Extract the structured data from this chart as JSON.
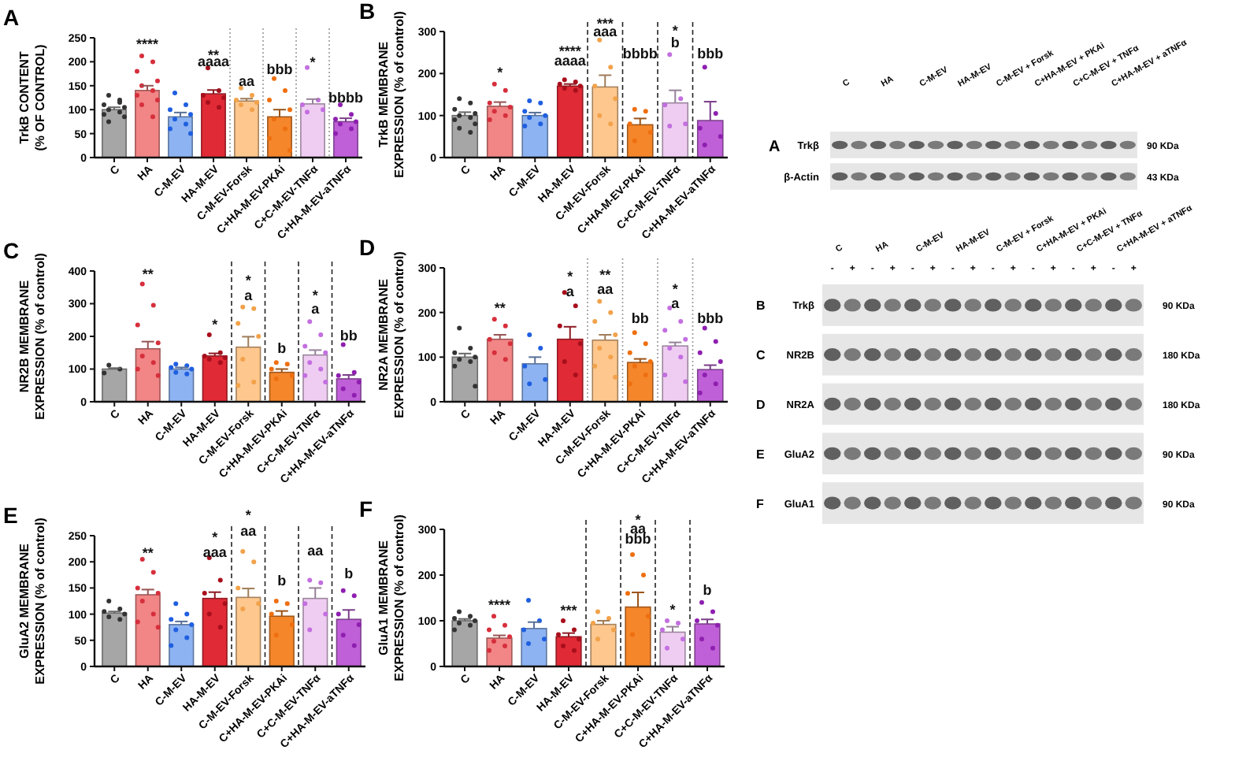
{
  "chart_data": [
    {
      "type": "bar",
      "title": "A",
      "ylabel": "TrkB CONTENT\n(% OF CONTROL)",
      "categories": [
        "C",
        "HA",
        "C-M-EV",
        "HA-M-EV",
        "C-M-EV-Forsk",
        "C+HA-M-EV-PKAi",
        "C+C-M-EV-TNFα",
        "C+HA-M-EV-aTNFα"
      ],
      "ylim": [
        0,
        250
      ],
      "yticks": [
        0,
        50,
        100,
        150,
        200,
        250
      ],
      "series": [
        {
          "type": "bar",
          "values": [
            100,
            140,
            85,
            133,
            118,
            85,
            112,
            75
          ],
          "errors": [
            [
              100,
              105
            ],
            [
              140,
              150
            ],
            [
              85,
              94
            ],
            [
              133,
              141
            ],
            [
              118,
              123
            ],
            [
              85,
              100
            ],
            [
              112,
              122
            ],
            [
              75,
              82
            ]
          ],
          "colors": [
            "#a6a6a6",
            "#f28585",
            "#8db3f2",
            "#e02a36",
            "#fdc78e",
            "#f5862a",
            "#efcdf2",
            "#c060d8"
          ]
        },
        {
          "type": "scatter",
          "color": "#333333",
          "x": [
            "C",
            "C",
            "C",
            "C",
            "C",
            "C",
            "C",
            "C",
            "C",
            "C"
          ],
          "values": [
            130,
            120,
            110,
            105,
            100,
            95,
            90,
            85,
            75,
            115
          ]
        },
        {
          "type": "scatter",
          "color": "#d62f3c",
          "x": [
            "HA",
            "HA",
            "HA",
            "HA",
            "HA",
            "HA",
            "HA",
            "HA",
            "HA",
            "HA"
          ],
          "values": [
            212,
            200,
            180,
            160,
            150,
            140,
            130,
            120,
            110,
            85
          ]
        },
        {
          "type": "scatter",
          "color": "#1f5fe0",
          "x": [
            "C-M-EV",
            "C-M-EV",
            "C-M-EV",
            "C-M-EV",
            "C-M-EV",
            "C-M-EV",
            "C-M-EV",
            "C-M-EV"
          ],
          "values": [
            135,
            110,
            100,
            90,
            80,
            70,
            60,
            50
          ]
        },
        {
          "type": "scatter",
          "color": "#a80f1c",
          "x": [
            "HA-M-EV",
            "HA-M-EV",
            "HA-M-EV",
            "HA-M-EV",
            "HA-M-EV",
            "HA-M-EV"
          ],
          "values": [
            187,
            140,
            130,
            125,
            115,
            105
          ]
        },
        {
          "type": "scatter",
          "color": "#f2a24a",
          "x": [
            "C-M-EV-Forsk",
            "C-M-EV-Forsk",
            "C-M-EV-Forsk",
            "C-M-EV-Forsk",
            "C-M-EV-Forsk",
            "C-M-EV-Forsk"
          ],
          "values": [
            145,
            130,
            120,
            115,
            110,
            100
          ]
        },
        {
          "type": "scatter",
          "color": "#ee6f10",
          "x": [
            "C+HA-M-EV-PKAi",
            "C+HA-M-EV-PKAi",
            "C+HA-M-EV-PKAi",
            "C+HA-M-EV-PKAi",
            "C+HA-M-EV-PKAi",
            "C+HA-M-EV-PKAi",
            "C+HA-M-EV-PKAi",
            "C+HA-M-EV-PKAi"
          ],
          "values": [
            165,
            140,
            120,
            100,
            80,
            60,
            40,
            15
          ]
        },
        {
          "type": "scatter",
          "color": "#c36fe0",
          "x": [
            "C+C-M-EV-TNFα",
            "C+C-M-EV-TNFα",
            "C+C-M-EV-TNFα",
            "C+C-M-EV-TNFα",
            "C+C-M-EV-TNFα"
          ],
          "values": [
            188,
            120,
            110,
            100,
            95
          ]
        },
        {
          "type": "scatter",
          "color": "#8e1fb0",
          "x": [
            "C+HA-M-EV-aTNFα",
            "C+HA-M-EV-aTNFα",
            "C+HA-M-EV-aTNFα",
            "C+HA-M-EV-aTNFα",
            "C+HA-M-EV-aTNFα",
            "C+HA-M-EV-aTNFα",
            "C+HA-M-EV-aTNFα"
          ],
          "values": [
            110,
            90,
            80,
            75,
            70,
            60,
            50
          ]
        }
      ],
      "annotations": [
        "****",
        "**",
        "aaaa",
        "aa",
        "bbb",
        "*",
        "bbbb"
      ]
    },
    {
      "type": "bar",
      "title": "B",
      "ylabel": "TrkB MEMBRANE\nEXPRESSION (% of control)",
      "categories": [
        "C",
        "HA",
        "C-M-EV",
        "HA-M-EV",
        "C-M-EV-Forsk",
        "C+HA-M-EV-PKAi",
        "C+C-M-EV-TNFα",
        "C+HA-M-EV-aTNFα"
      ],
      "ylim": [
        0,
        300
      ],
      "yticks": [
        0,
        100,
        200,
        300
      ],
      "series": [
        {
          "type": "bar",
          "values": [
            100,
            122,
            100,
            170,
            168,
            78,
            130,
            88
          ],
          "errors": [
            [
              100,
              108
            ],
            [
              122,
              132
            ],
            [
              100,
              107
            ],
            [
              170,
              175
            ],
            [
              168,
              196
            ],
            [
              78,
              93
            ],
            [
              130,
              160
            ],
            [
              88,
              133
            ]
          ],
          "colors": [
            "#a6a6a6",
            "#f28585",
            "#8db3f2",
            "#e02a36",
            "#fdc78e",
            "#f5862a",
            "#efcdf2",
            "#c060d8"
          ]
        },
        {
          "type": "scatter",
          "color": "#333333",
          "x": [
            "C",
            "C",
            "C",
            "C",
            "C",
            "C",
            "C",
            "C",
            "C",
            "C"
          ],
          "values": [
            140,
            130,
            115,
            105,
            100,
            95,
            90,
            80,
            70,
            60
          ]
        },
        {
          "type": "scatter",
          "color": "#d62f3c",
          "x": [
            "HA",
            "HA",
            "HA",
            "HA",
            "HA",
            "HA",
            "HA"
          ],
          "values": [
            175,
            160,
            130,
            120,
            110,
            100,
            90
          ]
        },
        {
          "type": "scatter",
          "color": "#1f5fe0",
          "x": [
            "C-M-EV",
            "C-M-EV",
            "C-M-EV",
            "C-M-EV",
            "C-M-EV",
            "C-M-EV",
            "C-M-EV"
          ],
          "values": [
            135,
            130,
            110,
            100,
            95,
            80,
            75
          ]
        },
        {
          "type": "scatter",
          "color": "#a80f1c",
          "x": [
            "HA-M-EV",
            "HA-M-EV",
            "HA-M-EV",
            "HA-M-EV",
            "HA-M-EV",
            "HA-M-EV"
          ],
          "values": [
            185,
            180,
            175,
            170,
            165,
            160
          ]
        },
        {
          "type": "scatter",
          "color": "#f2a24a",
          "x": [
            "C-M-EV-Forsk",
            "C-M-EV-Forsk",
            "C-M-EV-Forsk",
            "C-M-EV-Forsk",
            "C-M-EV-Forsk",
            "C-M-EV-Forsk"
          ],
          "values": [
            280,
            215,
            170,
            140,
            100,
            80
          ]
        },
        {
          "type": "scatter",
          "color": "#ee6f10",
          "x": [
            "C+HA-M-EV-PKAi",
            "C+HA-M-EV-PKAi",
            "C+HA-M-EV-PKAi",
            "C+HA-M-EV-PKAi",
            "C+HA-M-EV-PKAi"
          ],
          "values": [
            115,
            110,
            80,
            60,
            40
          ]
        },
        {
          "type": "scatter",
          "color": "#c36fe0",
          "x": [
            "C+C-M-EV-TNFα",
            "C+C-M-EV-TNFα",
            "C+C-M-EV-TNFα",
            "C+C-M-EV-TNFα",
            "C+C-M-EV-TNFα"
          ],
          "values": [
            245,
            140,
            125,
            80,
            75
          ]
        },
        {
          "type": "scatter",
          "color": "#8e1fb0",
          "x": [
            "C+HA-M-EV-aTNFα",
            "C+HA-M-EV-aTNFα",
            "C+HA-M-EV-aTNFα",
            "C+HA-M-EV-aTNFα",
            "C+HA-M-EV-aTNFα"
          ],
          "values": [
            215,
            105,
            70,
            50,
            30
          ]
        }
      ],
      "annotations": [
        "*",
        "****",
        "aaaa",
        "***",
        "aaa",
        "bbbb",
        "*",
        "b",
        "bbb"
      ]
    },
    {
      "type": "bar",
      "title": "C",
      "ylabel": "NR2B MEMBRANE\nEXPRESSION (% of control)",
      "categories": [
        "C",
        "HA",
        "C-M-EV",
        "HA-M-EV",
        "C-M-EV-Forsk",
        "C+HA-M-EV-PKAi",
        "C+C-M-EV-TNFα",
        "C+HA-M-EV-aTNFα"
      ],
      "ylim": [
        0,
        400
      ],
      "yticks": [
        0,
        100,
        200,
        300,
        400
      ],
      "series": [
        {
          "type": "bar",
          "values": [
            100,
            162,
            100,
            140,
            167,
            90,
            143,
            70
          ],
          "errors": [
            [
              100,
              103
            ],
            [
              162,
              184
            ],
            [
              100,
              105
            ],
            [
              140,
              148
            ],
            [
              167,
              199
            ],
            [
              90,
              100
            ],
            [
              143,
              158
            ],
            [
              70,
              82
            ]
          ],
          "colors": [
            "#a6a6a6",
            "#f28585",
            "#8db3f2",
            "#e02a36",
            "#fdc78e",
            "#f5862a",
            "#efcdf2",
            "#c060d8"
          ]
        },
        {
          "type": "scatter",
          "color": "#333333",
          "x": [
            "C",
            "C",
            "C"
          ],
          "values": [
            112,
            100,
            88
          ]
        },
        {
          "type": "scatter",
          "color": "#d62f3c",
          "x": [
            "HA",
            "HA",
            "HA",
            "HA",
            "HA",
            "HA",
            "HA",
            "HA"
          ],
          "values": [
            360,
            295,
            235,
            180,
            140,
            120,
            100,
            80
          ]
        },
        {
          "type": "scatter",
          "color": "#1f5fe0",
          "x": [
            "C-M-EV",
            "C-M-EV",
            "C-M-EV",
            "C-M-EV",
            "C-M-EV",
            "C-M-EV"
          ],
          "values": [
            115,
            110,
            105,
            100,
            90,
            85
          ]
        },
        {
          "type": "scatter",
          "color": "#a80f1c",
          "x": [
            "HA-M-EV",
            "HA-M-EV",
            "HA-M-EV",
            "HA-M-EV",
            "HA-M-EV",
            "HA-M-EV"
          ],
          "values": [
            205,
            150,
            140,
            135,
            130,
            120
          ]
        },
        {
          "type": "scatter",
          "color": "#f2a24a",
          "x": [
            "C-M-EV-Forsk",
            "C-M-EV-Forsk",
            "C-M-EV-Forsk",
            "C-M-EV-Forsk",
            "C-M-EV-Forsk",
            "C-M-EV-Forsk",
            "C-M-EV-Forsk"
          ],
          "values": [
            290,
            285,
            240,
            200,
            130,
            60,
            50
          ]
        },
        {
          "type": "scatter",
          "color": "#ee6f10",
          "x": [
            "C+HA-M-EV-PKAi",
            "C+HA-M-EV-PKAi",
            "C+HA-M-EV-PKAi",
            "C+HA-M-EV-PKAi",
            "C+HA-M-EV-PKAi"
          ],
          "values": [
            120,
            115,
            100,
            80,
            70
          ]
        },
        {
          "type": "scatter",
          "color": "#c36fe0",
          "x": [
            "C+C-M-EV-TNFα",
            "C+C-M-EV-TNFα",
            "C+C-M-EV-TNFα",
            "C+C-M-EV-TNFα",
            "C+C-M-EV-TNFα",
            "C+C-M-EV-TNFα",
            "C+C-M-EV-TNFα",
            "C+C-M-EV-TNFα"
          ],
          "values": [
            245,
            205,
            170,
            150,
            120,
            100,
            80,
            60
          ]
        },
        {
          "type": "scatter",
          "color": "#8e1fb0",
          "x": [
            "C+HA-M-EV-aTNFα",
            "C+HA-M-EV-aTNFα",
            "C+HA-M-EV-aTNFα",
            "C+HA-M-EV-aTNFα",
            "C+HA-M-EV-aTNFα",
            "C+HA-M-EV-aTNFα"
          ],
          "values": [
            175,
            90,
            80,
            60,
            40,
            20
          ]
        }
      ],
      "annotations": [
        "**",
        "*",
        "*",
        "a",
        "b",
        "*",
        "a",
        "bb"
      ]
    },
    {
      "type": "bar",
      "title": "D",
      "ylabel": "NR2A MEMBRANE\nEXPRESSION (% of control)",
      "categories": [
        "C",
        "HA",
        "C-M-EV",
        "HA-M-EV",
        "C-M-EV-Forsk",
        "C+HA-M-EV-PKAi",
        "C+C-M-EV-TNFα",
        "C+HA-M-EV-aTNFα"
      ],
      "ylim": [
        0,
        300
      ],
      "yticks": [
        0,
        100,
        200,
        300
      ],
      "series": [
        {
          "type": "bar",
          "values": [
            100,
            140,
            85,
            140,
            138,
            88,
            125,
            72
          ],
          "errors": [
            [
              100,
              108
            ],
            [
              140,
              150
            ],
            [
              85,
              100
            ],
            [
              140,
              168
            ],
            [
              138,
              150
            ],
            [
              88,
              96
            ],
            [
              125,
              133
            ],
            [
              72,
              82
            ]
          ],
          "colors": [
            "#a6a6a6",
            "#f28585",
            "#8db3f2",
            "#e02a36",
            "#fdc78e",
            "#f5862a",
            "#efcdf2",
            "#c060d8"
          ]
        },
        {
          "type": "scatter",
          "color": "#333333",
          "x": [
            "C",
            "C",
            "C",
            "C",
            "C",
            "C",
            "C",
            "C"
          ],
          "values": [
            165,
            120,
            110,
            100,
            95,
            90,
            80,
            35
          ]
        },
        {
          "type": "scatter",
          "color": "#d62f3c",
          "x": [
            "HA",
            "HA",
            "HA",
            "HA",
            "HA",
            "HA"
          ],
          "values": [
            185,
            170,
            140,
            130,
            110,
            95
          ]
        },
        {
          "type": "scatter",
          "color": "#1f5fe0",
          "x": [
            "C-M-EV",
            "C-M-EV",
            "C-M-EV",
            "C-M-EV",
            "C-M-EV"
          ],
          "values": [
            150,
            120,
            80,
            50,
            40
          ]
        },
        {
          "type": "scatter",
          "color": "#a80f1c",
          "x": [
            "HA-M-EV",
            "HA-M-EV",
            "HA-M-EV",
            "HA-M-EV",
            "HA-M-EV",
            "HA-M-EV"
          ],
          "values": [
            245,
            215,
            170,
            130,
            90,
            60
          ]
        },
        {
          "type": "scatter",
          "color": "#f2a24a",
          "x": [
            "C-M-EV-Forsk",
            "C-M-EV-Forsk",
            "C-M-EV-Forsk",
            "C-M-EV-Forsk",
            "C-M-EV-Forsk",
            "C-M-EV-Forsk",
            "C-M-EV-Forsk",
            "C-M-EV-Forsk"
          ],
          "values": [
            225,
            200,
            180,
            150,
            120,
            100,
            80,
            55
          ]
        },
        {
          "type": "scatter",
          "color": "#ee6f10",
          "x": [
            "C+HA-M-EV-PKAi",
            "C+HA-M-EV-PKAi",
            "C+HA-M-EV-PKAi",
            "C+HA-M-EV-PKAi",
            "C+HA-M-EV-PKAi",
            "C+HA-M-EV-PKAi",
            "C+HA-M-EV-PKAi"
          ],
          "values": [
            155,
            130,
            110,
            90,
            80,
            60,
            40
          ]
        },
        {
          "type": "scatter",
          "color": "#c36fe0",
          "x": [
            "C+C-M-EV-TNFα",
            "C+C-M-EV-TNFα",
            "C+C-M-EV-TNFα",
            "C+C-M-EV-TNFα",
            "C+C-M-EV-TNFα",
            "C+C-M-EV-TNFα",
            "C+C-M-EV-TNFα",
            "C+C-M-EV-TNFα"
          ],
          "values": [
            210,
            180,
            160,
            140,
            120,
            100,
            60,
            45
          ]
        },
        {
          "type": "scatter",
          "color": "#8e1fb0",
          "x": [
            "C+HA-M-EV-aTNFα",
            "C+HA-M-EV-aTNFα",
            "C+HA-M-EV-aTNFα",
            "C+HA-M-EV-aTNFα",
            "C+HA-M-EV-aTNFα",
            "C+HA-M-EV-aTNFα",
            "C+HA-M-EV-aTNFα"
          ],
          "values": [
            165,
            135,
            110,
            90,
            60,
            40,
            20
          ]
        }
      ],
      "annotations": [
        "**",
        "*",
        "a",
        "**",
        "aa",
        "bb",
        "*",
        "a",
        "bbb"
      ]
    },
    {
      "type": "bar",
      "title": "E",
      "ylabel": "GluA2 MEMBRANE\nEXPRESSION (% of control)",
      "categories": [
        "C",
        "HA",
        "C-M-EV",
        "HA-M-EV",
        "C-M-EV-Forsk",
        "C+HA-M-EV-PKAi",
        "C+C-M-EV-TNFα",
        "C+HA-M-EV-aTNFα"
      ],
      "ylim": [
        0,
        250
      ],
      "yticks": [
        0,
        50,
        100,
        150,
        200,
        250
      ],
      "series": [
        {
          "type": "bar",
          "values": [
            102,
            137,
            80,
            130,
            132,
            96,
            130,
            90
          ],
          "errors": [
            [
              102,
              105
            ],
            [
              137,
              147
            ],
            [
              80,
              86
            ],
            [
              130,
              142
            ],
            [
              132,
              149
            ],
            [
              96,
              106
            ],
            [
              130,
              150
            ],
            [
              90,
              108
            ]
          ],
          "colors": [
            "#a6a6a6",
            "#f28585",
            "#8db3f2",
            "#e02a36",
            "#fdc78e",
            "#f5862a",
            "#efcdf2",
            "#c060d8"
          ]
        },
        {
          "type": "scatter",
          "color": "#333333",
          "x": [
            "C",
            "C",
            "C",
            "C",
            "C",
            "C"
          ],
          "values": [
            125,
            110,
            105,
            100,
            95,
            90
          ]
        },
        {
          "type": "scatter",
          "color": "#d62f3c",
          "x": [
            "HA",
            "HA",
            "HA",
            "HA",
            "HA",
            "HA",
            "HA",
            "HA"
          ],
          "values": [
            205,
            180,
            150,
            140,
            125,
            100,
            85,
            75
          ]
        },
        {
          "type": "scatter",
          "color": "#1f5fe0",
          "x": [
            "C-M-EV",
            "C-M-EV",
            "C-M-EV",
            "C-M-EV",
            "C-M-EV",
            "C-M-EV",
            "C-M-EV"
          ],
          "values": [
            120,
            100,
            90,
            80,
            70,
            55,
            40
          ]
        },
        {
          "type": "scatter",
          "color": "#a80f1c",
          "x": [
            "HA-M-EV",
            "HA-M-EV",
            "HA-M-EV",
            "HA-M-EV",
            "HA-M-EV",
            "HA-M-EV"
          ],
          "values": [
            208,
            165,
            140,
            120,
            100,
            75
          ]
        },
        {
          "type": "scatter",
          "color": "#f2a24a",
          "x": [
            "C-M-EV-Forsk",
            "C-M-EV-Forsk",
            "C-M-EV-Forsk",
            "C-M-EV-Forsk",
            "C-M-EV-Forsk"
          ],
          "values": [
            220,
            200,
            150,
            120,
            110
          ]
        },
        {
          "type": "scatter",
          "color": "#ee6f10",
          "x": [
            "C+HA-M-EV-PKAi",
            "C+HA-M-EV-PKAi",
            "C+HA-M-EV-PKAi",
            "C+HA-M-EV-PKAi",
            "C+HA-M-EV-PKAi"
          ],
          "values": [
            125,
            120,
            100,
            80,
            60
          ]
        },
        {
          "type": "scatter",
          "color": "#c36fe0",
          "x": [
            "C+C-M-EV-TNFα",
            "C+C-M-EV-TNFα",
            "C+C-M-EV-TNFα",
            "C+C-M-EV-TNFα",
            "C+C-M-EV-TNFα"
          ],
          "values": [
            165,
            160,
            120,
            100,
            70
          ]
        },
        {
          "type": "scatter",
          "color": "#8e1fb0",
          "x": [
            "C+HA-M-EV-aTNFα",
            "C+HA-M-EV-aTNFα",
            "C+HA-M-EV-aTNFα",
            "C+HA-M-EV-aTNFα",
            "C+HA-M-EV-aTNFα",
            "C+HA-M-EV-aTNFα"
          ],
          "values": [
            145,
            135,
            100,
            80,
            60,
            40
          ]
        }
      ],
      "annotations": [
        "**",
        "*",
        "aaa",
        "*",
        "aa",
        "b",
        "aa",
        "b"
      ]
    },
    {
      "type": "bar",
      "title": "F",
      "ylabel": "GluA1 MEMBRANE\nEXPRESSION (% of control)",
      "categories": [
        "C",
        "HA",
        "C-M-EV",
        "HA-M-EV",
        "C-M-EV-Forsk",
        "C+HA-M-EV-PKAi",
        "C+C-M-EV-TNFα",
        "C+HA-M-EV-aTNFα"
      ],
      "ylim": [
        0,
        300
      ],
      "yticks": [
        0,
        100,
        200,
        300
      ],
      "series": [
        {
          "type": "bar",
          "values": [
            100,
            62,
            83,
            65,
            92,
            130,
            75,
            93
          ],
          "errors": [
            [
              100,
              104
            ],
            [
              62,
              68
            ],
            [
              83,
              97
            ],
            [
              65,
              73
            ],
            [
              92,
              100
            ],
            [
              130,
              162
            ],
            [
              75,
              87
            ],
            [
              93,
              103
            ]
          ],
          "colors": [
            "#a6a6a6",
            "#f28585",
            "#8db3f2",
            "#e02a36",
            "#fdc78e",
            "#f5862a",
            "#efcdf2",
            "#c060d8"
          ]
        },
        {
          "type": "scatter",
          "color": "#333333",
          "x": [
            "C",
            "C",
            "C",
            "C",
            "C",
            "C",
            "C"
          ],
          "values": [
            120,
            110,
            105,
            100,
            95,
            90,
            80
          ]
        },
        {
          "type": "scatter",
          "color": "#d62f3c",
          "x": [
            "HA",
            "HA",
            "HA",
            "HA",
            "HA",
            "HA",
            "HA"
          ],
          "values": [
            110,
            90,
            80,
            65,
            55,
            45,
            35
          ]
        },
        {
          "type": "scatter",
          "color": "#1f5fe0",
          "x": [
            "C-M-EV",
            "C-M-EV",
            "C-M-EV",
            "C-M-EV",
            "C-M-EV"
          ],
          "values": [
            145,
            100,
            80,
            60,
            50
          ]
        },
        {
          "type": "scatter",
          "color": "#a80f1c",
          "x": [
            "HA-M-EV",
            "HA-M-EV",
            "HA-M-EV",
            "HA-M-EV",
            "HA-M-EV",
            "HA-M-EV"
          ],
          "values": [
            100,
            80,
            70,
            60,
            45,
            35
          ]
        },
        {
          "type": "scatter",
          "color": "#f2a24a",
          "x": [
            "C-M-EV-Forsk",
            "C-M-EV-Forsk",
            "C-M-EV-Forsk",
            "C-M-EV-Forsk",
            "C-M-EV-Forsk"
          ],
          "values": [
            120,
            105,
            95,
            80,
            60
          ]
        },
        {
          "type": "scatter",
          "color": "#ee6f10",
          "x": [
            "C+HA-M-EV-PKAi",
            "C+HA-M-EV-PKAi",
            "C+HA-M-EV-PKAi",
            "C+HA-M-EV-PKAi",
            "C+HA-M-EV-PKAi"
          ],
          "values": [
            245,
            200,
            160,
            110,
            70
          ]
        },
        {
          "type": "scatter",
          "color": "#c36fe0",
          "x": [
            "C+C-M-EV-TNFα",
            "C+C-M-EV-TNFα",
            "C+C-M-EV-TNFα",
            "C+C-M-EV-TNFα",
            "C+C-M-EV-TNFα"
          ],
          "values": [
            100,
            95,
            80,
            60,
            40
          ]
        },
        {
          "type": "scatter",
          "color": "#8e1fb0",
          "x": [
            "C+HA-M-EV-aTNFα",
            "C+HA-M-EV-aTNFα",
            "C+HA-M-EV-aTNFα",
            "C+HA-M-EV-aTNFα",
            "C+HA-M-EV-aTNFα",
            "C+HA-M-EV-aTNFα"
          ],
          "values": [
            140,
            120,
            100,
            90,
            60,
            40
          ]
        }
      ],
      "annotations": [
        "****",
        "***",
        "*",
        "aa",
        "bbb",
        "*",
        "b"
      ]
    },
    {
      "type": "other",
      "title": "A",
      "categories": [
        "C",
        "HA",
        "C-M-EV",
        "HA-M-EV",
        "C-M-EV + Forsk",
        "C+HA-M-EV + PKAi",
        "C+C-M-EV + TNFα",
        "C+HA-M-EV + aTNFα"
      ],
      "y_categories": [
        "Trkβ",
        "β-Actin"
      ],
      "y2_categories": [
        "90 KDa",
        "43 KDa"
      ]
    },
    {
      "type": "other",
      "categories": [
        "C",
        "HA",
        "C-M-EV",
        "HA-M-EV",
        "C-M-EV + Forsk",
        "C+HA-M-EV + PKAi",
        "C+C-M-EV + TNFα",
        "C+HA-M-EV + aTNFα"
      ],
      "y_categories": [
        "Trkβ",
        "NR2B",
        "NR2A",
        "GluA2",
        "GluA1"
      ],
      "y2_categories": [
        "90 KDa",
        "180 KDa",
        "180 KDa",
        "90 KDa",
        "90 KDa"
      ],
      "annotations": [
        "B",
        "C",
        "D",
        "E",
        "F",
        "-",
        "+",
        "-",
        "+",
        "-",
        "+",
        "-",
        "+",
        "-",
        "+",
        "-",
        "+",
        "-",
        "+",
        "-",
        "+"
      ]
    }
  ]
}
